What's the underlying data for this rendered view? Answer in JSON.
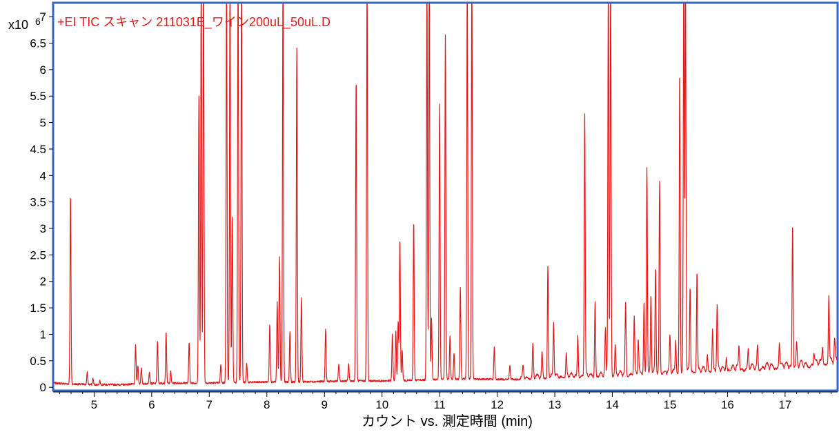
{
  "chart_data": {
    "type": "line",
    "title": "+EI TIC スキャン 211031E_ワイン200uL_50uL.D",
    "xlabel": "カウント vs. 測定時間 (min)",
    "ylabel": "",
    "y_multiplier_label": "x10",
    "y_multiplier_exponent": "6",
    "xlim": [
      4.3,
      17.9
    ],
    "ylim": [
      -0.05,
      7.25
    ],
    "x_ticks": [
      5,
      6,
      7,
      8,
      9,
      10,
      11,
      12,
      13,
      14,
      15,
      16,
      17
    ],
    "x_tick_labels": [
      "5",
      "6",
      "7",
      "8",
      "9",
      "10",
      "11",
      "12",
      "13",
      "14",
      "15",
      "16",
      "17"
    ],
    "y_ticks": [
      0,
      0.5,
      1,
      1.5,
      2,
      2.5,
      3,
      3.5,
      4,
      4.5,
      5,
      5.5,
      6,
      6.5,
      7
    ],
    "y_tick_labels": [
      "0",
      "0.5",
      "1",
      "1.5",
      "2",
      "2.5",
      "3",
      "3.5",
      "4",
      "4.5",
      "5",
      "5.5",
      "6",
      "6.5",
      "7"
    ],
    "grid": false,
    "legend": "none",
    "line_color": "#e0191b",
    "title_color": "#e0191b",
    "frame_color": "#3566c5",
    "baseline": [
      [
        4.3,
        0.08
      ],
      [
        4.6,
        0.06
      ],
      [
        5.0,
        0.05
      ],
      [
        5.5,
        0.05
      ],
      [
        5.7,
        0.06
      ],
      [
        6.0,
        0.07
      ],
      [
        6.5,
        0.08
      ],
      [
        7.0,
        0.08
      ],
      [
        7.5,
        0.09
      ],
      [
        8.0,
        0.1
      ],
      [
        8.5,
        0.1
      ],
      [
        9.0,
        0.11
      ],
      [
        9.5,
        0.12
      ],
      [
        10.0,
        0.12
      ],
      [
        10.5,
        0.13
      ],
      [
        11.0,
        0.15
      ],
      [
        11.5,
        0.16
      ],
      [
        12.0,
        0.15
      ],
      [
        12.5,
        0.15
      ],
      [
        13.0,
        0.17
      ],
      [
        13.5,
        0.18
      ],
      [
        14.0,
        0.2
      ],
      [
        14.5,
        0.22
      ],
      [
        15.0,
        0.25
      ],
      [
        15.5,
        0.27
      ],
      [
        16.0,
        0.3
      ],
      [
        16.5,
        0.32
      ],
      [
        17.0,
        0.35
      ],
      [
        17.5,
        0.38
      ],
      [
        17.9,
        0.45
      ]
    ],
    "peaks": [
      {
        "x": 4.59,
        "y": 3.65
      },
      {
        "x": 4.88,
        "y": 0.28
      },
      {
        "x": 4.98,
        "y": 0.17
      },
      {
        "x": 5.1,
        "y": 0.12
      },
      {
        "x": 5.72,
        "y": 0.8
      },
      {
        "x": 5.76,
        "y": 0.42
      },
      {
        "x": 5.82,
        "y": 0.38
      },
      {
        "x": 5.96,
        "y": 0.3
      },
      {
        "x": 6.1,
        "y": 0.87
      },
      {
        "x": 6.25,
        "y": 1.05
      },
      {
        "x": 6.33,
        "y": 0.3
      },
      {
        "x": 6.65,
        "y": 0.85
      },
      {
        "x": 6.82,
        "y": 5.5
      },
      {
        "x": 6.86,
        "y": 7.8
      },
      {
        "x": 6.9,
        "y": 7.8
      },
      {
        "x": 7.2,
        "y": 0.42
      },
      {
        "x": 7.3,
        "y": 7.8
      },
      {
        "x": 7.36,
        "y": 7.8
      },
      {
        "x": 7.4,
        "y": 3.2
      },
      {
        "x": 7.5,
        "y": 7.8
      },
      {
        "x": 7.56,
        "y": 7.8
      },
      {
        "x": 7.65,
        "y": 0.45
      },
      {
        "x": 8.05,
        "y": 1.2
      },
      {
        "x": 8.18,
        "y": 1.6
      },
      {
        "x": 8.22,
        "y": 2.45
      },
      {
        "x": 8.28,
        "y": 7.8
      },
      {
        "x": 8.4,
        "y": 1.05
      },
      {
        "x": 8.52,
        "y": 6.4
      },
      {
        "x": 8.6,
        "y": 1.7
      },
      {
        "x": 9.02,
        "y": 1.1
      },
      {
        "x": 9.25,
        "y": 0.45
      },
      {
        "x": 9.42,
        "y": 0.45
      },
      {
        "x": 9.55,
        "y": 5.85
      },
      {
        "x": 9.74,
        "y": 7.8
      },
      {
        "x": 10.18,
        "y": 1.0
      },
      {
        "x": 10.24,
        "y": 1.05
      },
      {
        "x": 10.28,
        "y": 1.25
      },
      {
        "x": 10.31,
        "y": 2.8
      },
      {
        "x": 10.35,
        "y": 0.7
      },
      {
        "x": 10.55,
        "y": 3.15
      },
      {
        "x": 10.78,
        "y": 7.8
      },
      {
        "x": 10.82,
        "y": 7.8
      },
      {
        "x": 10.86,
        "y": 1.3
      },
      {
        "x": 11.0,
        "y": 5.35
      },
      {
        "x": 11.1,
        "y": 6.65
      },
      {
        "x": 11.18,
        "y": 0.95
      },
      {
        "x": 11.25,
        "y": 0.65
      },
      {
        "x": 11.36,
        "y": 1.88
      },
      {
        "x": 11.48,
        "y": 7.8
      },
      {
        "x": 11.56,
        "y": 7.8
      },
      {
        "x": 11.95,
        "y": 0.78
      },
      {
        "x": 12.22,
        "y": 0.42
      },
      {
        "x": 12.45,
        "y": 0.35
      },
      {
        "x": 12.62,
        "y": 0.8
      },
      {
        "x": 12.78,
        "y": 0.62
      },
      {
        "x": 12.88,
        "y": 2.25
      },
      {
        "x": 12.98,
        "y": 1.18
      },
      {
        "x": 13.2,
        "y": 0.6
      },
      {
        "x": 13.4,
        "y": 0.98
      },
      {
        "x": 13.52,
        "y": 5.1
      },
      {
        "x": 13.7,
        "y": 1.6
      },
      {
        "x": 13.88,
        "y": 1.05
      },
      {
        "x": 13.93,
        "y": 7.8
      },
      {
        "x": 13.97,
        "y": 7.8
      },
      {
        "x": 14.05,
        "y": 0.75
      },
      {
        "x": 14.23,
        "y": 1.58
      },
      {
        "x": 14.38,
        "y": 1.25
      },
      {
        "x": 14.45,
        "y": 0.85
      },
      {
        "x": 14.55,
        "y": 1.6
      },
      {
        "x": 14.6,
        "y": 4.15
      },
      {
        "x": 14.67,
        "y": 1.68
      },
      {
        "x": 14.75,
        "y": 2.2
      },
      {
        "x": 14.82,
        "y": 3.85
      },
      {
        "x": 15.0,
        "y": 0.9
      },
      {
        "x": 15.1,
        "y": 0.85
      },
      {
        "x": 15.17,
        "y": 5.95
      },
      {
        "x": 15.24,
        "y": 7.8
      },
      {
        "x": 15.27,
        "y": 7.8
      },
      {
        "x": 15.35,
        "y": 1.85
      },
      {
        "x": 15.47,
        "y": 2.15
      },
      {
        "x": 15.65,
        "y": 0.55
      },
      {
        "x": 15.74,
        "y": 1.05
      },
      {
        "x": 15.82,
        "y": 1.48
      },
      {
        "x": 15.98,
        "y": 0.55
      },
      {
        "x": 16.2,
        "y": 0.72
      },
      {
        "x": 16.36,
        "y": 0.65
      },
      {
        "x": 16.52,
        "y": 0.75
      },
      {
        "x": 16.9,
        "y": 0.82
      },
      {
        "x": 17.13,
        "y": 3.08
      },
      {
        "x": 17.2,
        "y": 0.78
      },
      {
        "x": 17.5,
        "y": 0.62
      },
      {
        "x": 17.65,
        "y": 0.72
      },
      {
        "x": 17.76,
        "y": 1.7
      },
      {
        "x": 17.86,
        "y": 0.8
      }
    ]
  }
}
